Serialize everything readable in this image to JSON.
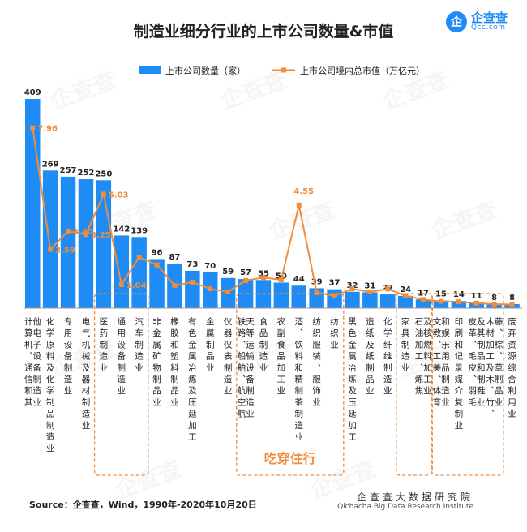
{
  "title": "制造业细分行业的上市公司数量&市值",
  "logo": {
    "mark": "企",
    "name": "企查查",
    "url": "Qcc.com"
  },
  "watermark": "企查查",
  "source": "Source：企查查，Wind，1990年-2020年10月20日",
  "footer": {
    "cn": "企查查大数据研究院",
    "en": "Qichacha Big Data Research Institute"
  },
  "highlight_label": "吃穿住行",
  "chart_data": {
    "type": "bar",
    "legend_position": "top",
    "bar_color": "#1f8cf5",
    "line_color": "#f08c3a",
    "categories": [
      "计算机、通信和其他电子设备制造业",
      "化学原料及化学制品制造业",
      "专用设备制造业",
      "电气机械及器材制造业",
      "医药制造业",
      "通用设备制造业",
      "汽车制造业",
      "非金属矿物制品业",
      "橡胶和塑料制品业",
      "有色金属冶炼及压延加工",
      "金属制品业",
      "仪器仪表制造业",
      "铁路、船舶、航空航天等运输设备制造业",
      "食品制造业",
      "农副食品加工业",
      "酒、饮料和精制茶制造业",
      "纺织服装、服饰业",
      "纺织业",
      "黑色金属冶炼及压延加工",
      "造纸及纸制品业",
      "化学纤维制造业",
      "家具制造业",
      "石油加工、炼焦及核燃料加工业",
      "文教、工美、体育和娱乐用品制造业",
      "印刷和记录媒介复制业",
      "皮革、毛皮、羽毛及其制品和制鞋业",
      "木材加工及木、竹、藤、棕、草制品业",
      "废弃资源综合利用业"
    ],
    "series": [
      {
        "name": "上市公司数量（家）",
        "type": "bar",
        "values": [
          409,
          269,
          257,
          252,
          250,
          142,
          139,
          96,
          87,
          73,
          70,
          59,
          57,
          55,
          50,
          44,
          39,
          37,
          32,
          31,
          27,
          24,
          17,
          15,
          14,
          11,
          8,
          8
        ]
      },
      {
        "name": "上市公司境内总市值（万亿元）",
        "type": "line",
        "values": [
          7.96,
          2.59,
          3.4,
          3.25,
          5.03,
          1.04,
          2.25,
          1.91,
          1.0,
          1.15,
          0.85,
          0.72,
          1.22,
          1.35,
          1.25,
          4.55,
          0.68,
          0.55,
          0.85,
          0.72,
          0.85,
          0.55,
          0.38,
          0.3,
          0.28,
          0.22,
          0.18,
          0.16
        ],
        "labels": [
          "7.96",
          "2.59",
          "3.40",
          "3.25",
          "5.03",
          "1.04",
          "",
          "",
          "",
          "",
          "",
          "",
          "",
          "",
          "",
          "4.55",
          "",
          "",
          "",
          "",
          "",
          "",
          "",
          "",
          "",
          "",
          "",
          ""
        ]
      }
    ],
    "highlight_groups": [
      [
        4,
        6
      ],
      [
        12,
        17
      ],
      [
        21,
        22
      ],
      [
        23,
        26
      ]
    ]
  }
}
